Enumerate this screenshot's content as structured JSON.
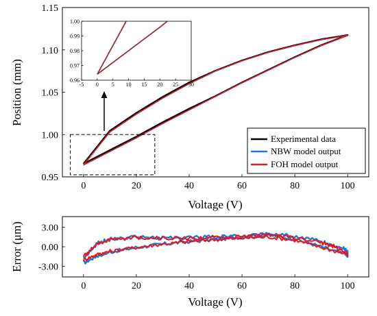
{
  "chart_data": [
    {
      "type": "line",
      "xlabel": "Voltage (V)",
      "ylabel": "Position (mm)",
      "xlim": [
        -8,
        108
      ],
      "ylim": [
        0.95,
        1.15
      ],
      "xticks": [
        0,
        20,
        40,
        60,
        80,
        100
      ],
      "xtick_labels": [
        "0",
        "20",
        "40",
        "60",
        "80",
        "100"
      ],
      "yticks": [
        0.95,
        1.0,
        1.05,
        1.1,
        1.15
      ],
      "ytick_labels": [
        "0.95",
        "1.00",
        "1.05",
        "1.10",
        "1.15"
      ],
      "grid": false,
      "legend_position": "bottom-right",
      "series": [
        {
          "name": "Experimental data",
          "color": "#000000",
          "ascending": {
            "x": [
              0,
              10,
              20,
              30,
              40,
              50,
              60,
              70,
              80,
              90,
              100
            ],
            "y": [
              0.964,
              0.98,
              0.996,
              1.013,
              1.029,
              1.045,
              1.061,
              1.076,
              1.091,
              1.105,
              1.117
            ]
          },
          "descending": {
            "x": [
              100,
              90,
              80,
              70,
              60,
              50,
              40,
              30,
              20,
              10,
              0
            ],
            "y": [
              1.117,
              1.112,
              1.105,
              1.097,
              1.087,
              1.075,
              1.06,
              1.043,
              1.024,
              1.003,
              0.964
            ]
          }
        },
        {
          "name": "NBW model output",
          "color": "#1f77d4",
          "ascending": {
            "x": [
              0,
              10,
              20,
              30,
              40,
              50,
              60,
              70,
              80,
              90,
              100
            ],
            "y": [
              0.964,
              0.98,
              0.996,
              1.013,
              1.029,
              1.045,
              1.061,
              1.076,
              1.091,
              1.105,
              1.117
            ]
          },
          "descending": {
            "x": [
              100,
              90,
              80,
              70,
              60,
              50,
              40,
              30,
              20,
              10,
              0
            ],
            "y": [
              1.117,
              1.112,
              1.105,
              1.097,
              1.087,
              1.075,
              1.06,
              1.043,
              1.024,
              1.003,
              0.964
            ]
          }
        },
        {
          "name": "FOH model output",
          "color": "#e8161b",
          "ascending": {
            "x": [
              0,
              10,
              20,
              30,
              40,
              50,
              60,
              70,
              80,
              90,
              100
            ],
            "y": [
              0.964,
              0.98,
              0.996,
              1.013,
              1.029,
              1.045,
              1.061,
              1.076,
              1.091,
              1.105,
              1.117
            ]
          },
          "descending": {
            "x": [
              100,
              90,
              80,
              70,
              60,
              50,
              40,
              30,
              20,
              10,
              0
            ],
            "y": [
              1.117,
              1.112,
              1.105,
              1.097,
              1.087,
              1.075,
              1.06,
              1.043,
              1.024,
              1.003,
              0.964
            ]
          }
        }
      ],
      "zoom_box": {
        "x": [
          -5,
          27
        ],
        "y": [
          0.95,
          1.0
        ]
      }
    },
    {
      "type": "line",
      "xlim": [
        -5,
        30
      ],
      "ylim": [
        0.96,
        1.0
      ],
      "xticks": [
        -5,
        0,
        5,
        10,
        15,
        20,
        25,
        30
      ],
      "xtick_labels": [
        "-5",
        "0",
        "5",
        "10",
        "15",
        "20",
        "25",
        "30"
      ],
      "yticks": [
        0.96,
        0.97,
        0.98,
        0.99,
        1.0
      ],
      "ytick_labels": [
        "0.96",
        "0.97",
        "0.98",
        "0.99",
        "1.00"
      ]
    },
    {
      "type": "line",
      "xlabel": "Voltage (V)",
      "ylabel": "Error (μm)",
      "xlim": [
        -8,
        108
      ],
      "ylim": [
        -4.6,
        4.6
      ],
      "xticks": [
        0,
        20,
        40,
        60,
        80,
        100
      ],
      "xtick_labels": [
        "0",
        "20",
        "40",
        "60",
        "80",
        "100"
      ],
      "yticks": [
        -3.0,
        0.0,
        3.0
      ],
      "ytick_labels": [
        "-3.00",
        "0.00",
        "3.00"
      ],
      "series": [
        {
          "name": "NBW model output",
          "color": "#1f77d4",
          "ascending": {
            "x": [
              0,
              5,
              10,
              20,
              30,
              40,
              50,
              60,
              70,
              80,
              90,
              100
            ],
            "y": [
              -2.5,
              -1.4,
              -0.8,
              -0.1,
              0.4,
              0.8,
              1.1,
              1.5,
              1.8,
              1.2,
              0.0,
              -1.3
            ]
          },
          "descending": {
            "x": [
              100,
              95,
              90,
              80,
              70,
              60,
              50,
              40,
              30,
              20,
              10,
              5,
              0
            ],
            "y": [
              -0.5,
              0.2,
              0.8,
              1.6,
              2.0,
              1.6,
              1.5,
              1.4,
              1.4,
              1.5,
              1.2,
              0.5,
              -1.8
            ]
          }
        },
        {
          "name": "FOH model output",
          "color": "#e8161b",
          "ascending": {
            "x": [
              0,
              5,
              10,
              20,
              30,
              40,
              50,
              60,
              70,
              80,
              90,
              100
            ],
            "y": [
              -2.0,
              -1.2,
              -0.7,
              -0.1,
              0.4,
              0.8,
              1.1,
              1.3,
              1.5,
              1.0,
              -0.1,
              -1.2
            ]
          },
          "descending": {
            "x": [
              100,
              95,
              90,
              80,
              70,
              60,
              50,
              40,
              30,
              20,
              10,
              5,
              0
            ],
            "y": [
              -1.0,
              0.0,
              0.6,
              1.4,
              1.8,
              1.5,
              1.4,
              1.3,
              1.3,
              1.4,
              1.1,
              0.4,
              -1.5
            ]
          }
        }
      ]
    }
  ]
}
